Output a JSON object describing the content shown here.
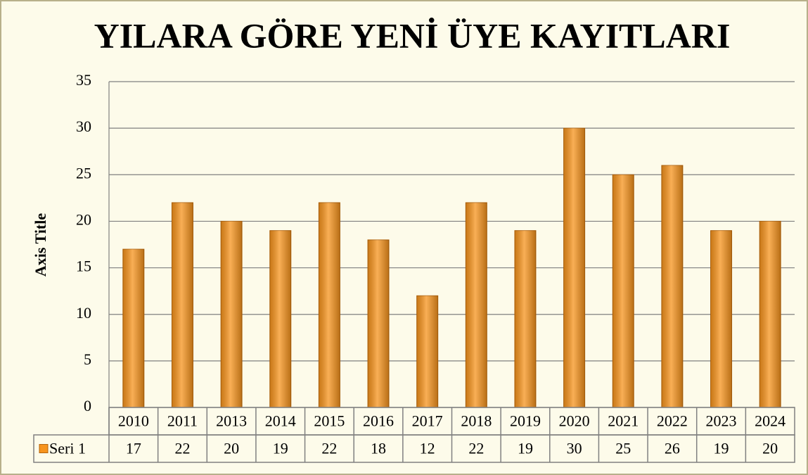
{
  "chart_data": {
    "type": "bar",
    "title": "YILARA GÖRE YENİ ÜYE KAYITLARI",
    "y_axis_label": "Axis Title",
    "categories": [
      "2010",
      "2011",
      "2013",
      "2014",
      "2015",
      "2016",
      "2017",
      "2018",
      "2019",
      "2020",
      "2021",
      "2022",
      "2023",
      "2024"
    ],
    "series": [
      {
        "name": "Seri 1",
        "color": "#f7941d",
        "values": [
          17,
          22,
          20,
          19,
          22,
          18,
          12,
          22,
          19,
          30,
          25,
          26,
          19,
          20
        ]
      }
    ],
    "ylim": [
      0,
      35
    ],
    "yticks": [
      0,
      5,
      10,
      15,
      20,
      25,
      30,
      35
    ],
    "grid": true,
    "data_table": true
  }
}
